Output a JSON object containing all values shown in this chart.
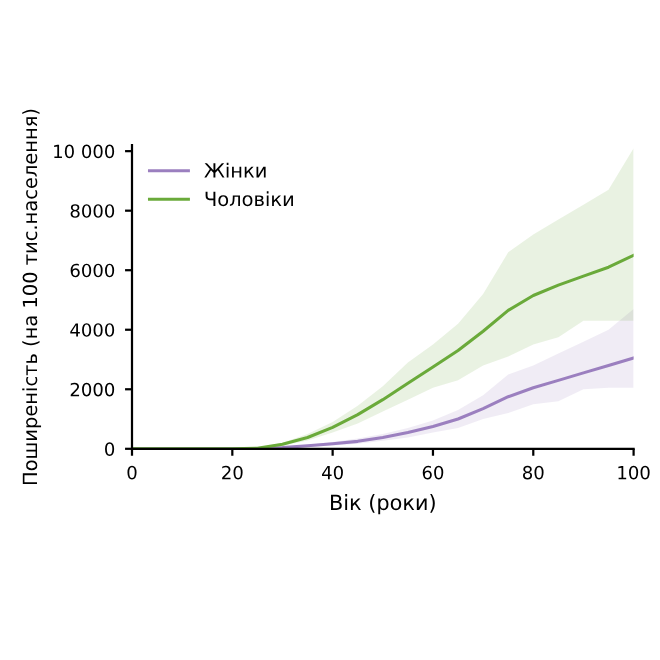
{
  "chart_data": {
    "type": "line",
    "xlabel": "Вік (роки)",
    "ylabel": "Поширеність (на 100 тис.населення)",
    "x": [
      0,
      20,
      25,
      30,
      35,
      40,
      45,
      50,
      55,
      60,
      65,
      70,
      75,
      80,
      85,
      90,
      95,
      100
    ],
    "series": [
      {
        "name": "Жінки",
        "color": "#9b7fbf",
        "values": [
          0,
          0,
          5,
          40,
          100,
          170,
          250,
          380,
          550,
          750,
          1000,
          1350,
          1750,
          2050,
          2300,
          2550,
          2800,
          3050
        ],
        "lower": [
          0,
          0,
          0,
          20,
          60,
          110,
          170,
          270,
          380,
          550,
          700,
          1000,
          1200,
          1500,
          1600,
          2000,
          2050,
          2050
        ],
        "upper": [
          0,
          0,
          10,
          60,
          140,
          230,
          350,
          500,
          700,
          950,
          1300,
          1800,
          2500,
          2800,
          3200,
          3600,
          4000,
          4700
        ]
      },
      {
        "name": "Чоловіки",
        "color": "#6aaa3a",
        "values": [
          0,
          0,
          20,
          150,
          380,
          720,
          1150,
          1650,
          2200,
          2750,
          3300,
          3950,
          4650,
          5150,
          5500,
          5800,
          6100,
          6500
        ],
        "lower": [
          0,
          0,
          10,
          100,
          280,
          550,
          850,
          1250,
          1650,
          2050,
          2300,
          2800,
          3100,
          3500,
          3750,
          4300,
          4300,
          4300
        ],
        "upper": [
          0,
          0,
          30,
          200,
          500,
          900,
          1450,
          2100,
          2900,
          3500,
          4200,
          5200,
          6600,
          7200,
          7700,
          8200,
          8700,
          10100
        ]
      }
    ],
    "xlim": [
      0,
      100
    ],
    "xticks": [
      0,
      20,
      40,
      60,
      80,
      100
    ],
    "ylim": [
      0,
      10200
    ],
    "yticks": [
      0,
      2000,
      4000,
      6000,
      8000,
      {
        "value": 10000,
        "label": "10 000"
      }
    ],
    "legend": "top left",
    "grid": false,
    "marker": "none",
    "line_style": "solid"
  }
}
